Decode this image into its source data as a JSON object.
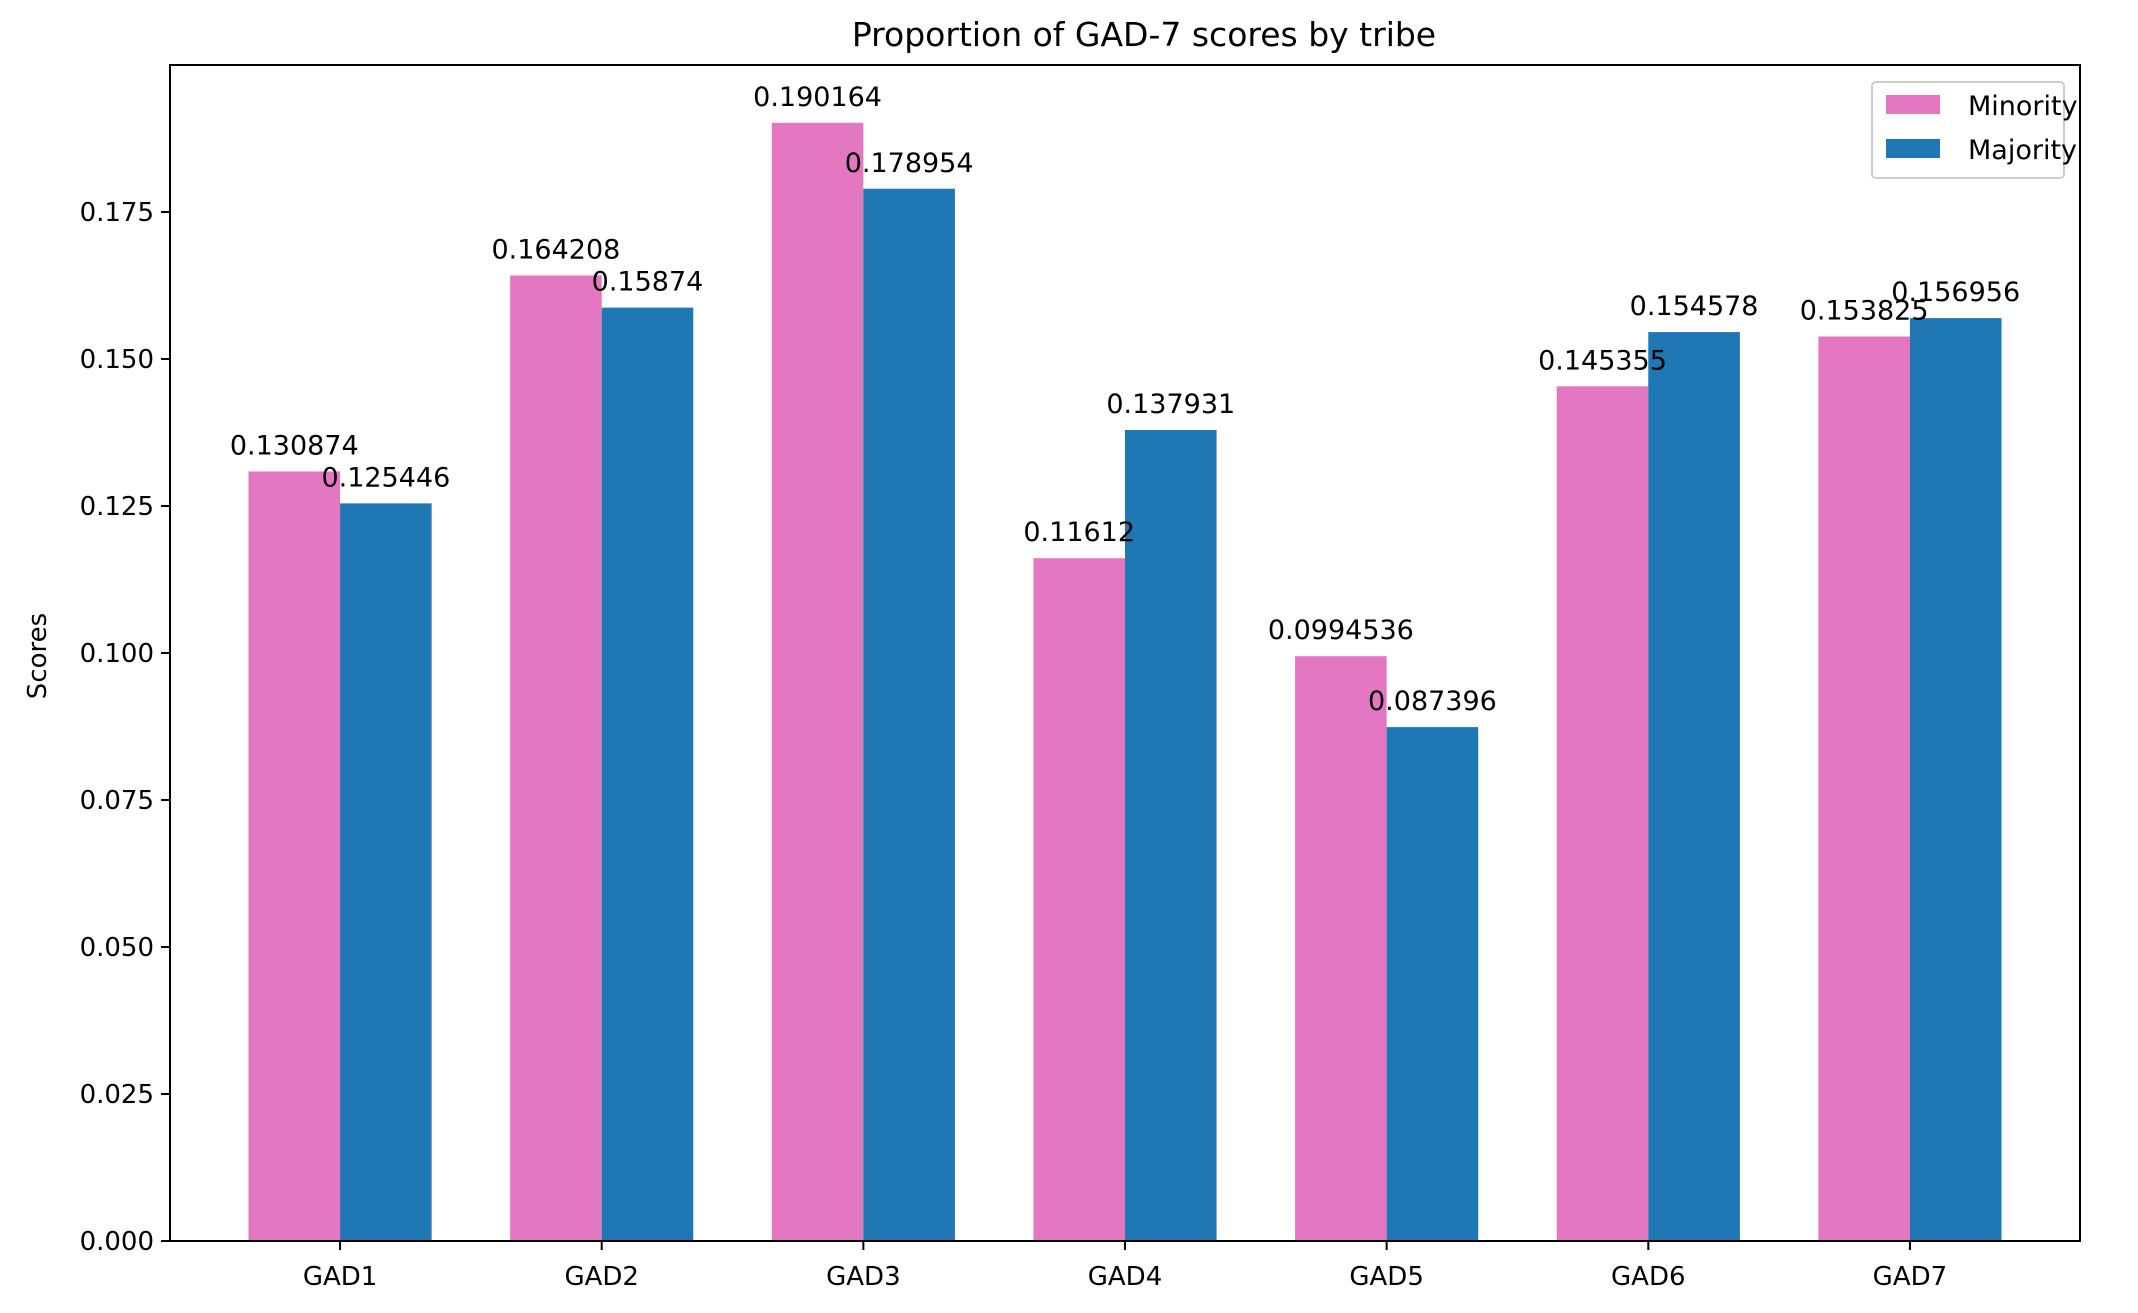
{
  "chart_data": {
    "type": "bar",
    "title": "Proportion of GAD-7 scores by tribe",
    "xlabel": "",
    "ylabel": "Scores",
    "categories": [
      "GAD1",
      "GAD2",
      "GAD3",
      "GAD4",
      "GAD5",
      "GAD6",
      "GAD7"
    ],
    "series": [
      {
        "name": "Minority",
        "color": "#e377c2",
        "values": [
          0.130874,
          0.164208,
          0.190164,
          0.11612,
          0.0994536,
          0.145355,
          0.153825
        ],
        "labels": [
          "0.130874",
          "0.164208",
          "0.190164",
          "0.11612",
          "0.0994536",
          "0.145355",
          "0.153825"
        ]
      },
      {
        "name": "Majority",
        "color": "#1f77b4",
        "values": [
          0.125446,
          0.15874,
          0.178954,
          0.137931,
          0.087396,
          0.154578,
          0.156956
        ],
        "labels": [
          "0.125446",
          "0.15874",
          "0.178954",
          "0.137931",
          "0.087396",
          "0.154578",
          "0.156956"
        ]
      }
    ],
    "ylim": [
      0,
      0.2
    ],
    "yticks": [
      "0.000",
      "0.025",
      "0.050",
      "0.075",
      "0.100",
      "0.125",
      "0.150",
      "0.175"
    ],
    "grid": false,
    "legend_position": "top-right"
  }
}
